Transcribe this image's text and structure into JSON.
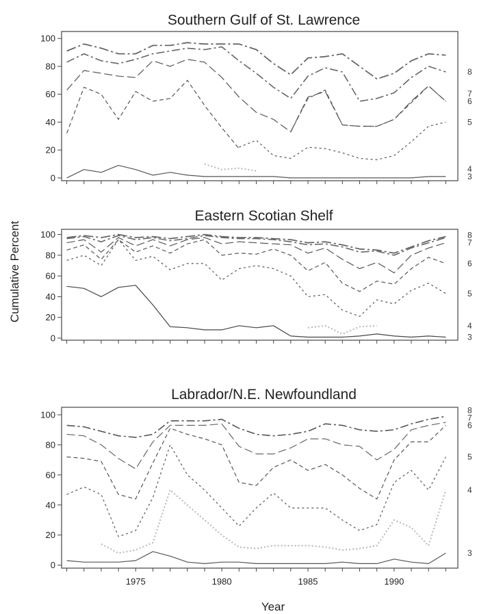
{
  "figure": {
    "ylabel": "Cumulative Percent",
    "xlabel": "Year"
  },
  "chart_data": [
    {
      "type": "line",
      "title": "Southern Gulf of St. Lawrence",
      "xlim": [
        1970.7,
        1993.7
      ],
      "ylim": [
        -2,
        105
      ],
      "x_ticks": [
        1975,
        1980,
        1985,
        1990
      ],
      "y_ticks": [
        0,
        20,
        40,
        60,
        80,
        100
      ],
      "x": [
        1971,
        1972,
        1973,
        1974,
        1975,
        1976,
        1977,
        1978,
        1979,
        1980,
        1981,
        1982,
        1983,
        1984,
        1985,
        1986,
        1987,
        1988,
        1989,
        1990,
        1991,
        1992,
        1993
      ],
      "series": [
        {
          "name": "3",
          "color": "#555555",
          "values": [
            0,
            6,
            4,
            9,
            6,
            2,
            4,
            2,
            1,
            1,
            1,
            1,
            1,
            0,
            0,
            0,
            0,
            0,
            0,
            0,
            0,
            1,
            1
          ]
        },
        {
          "name": "4",
          "color": "#bbbbbb",
          "values": [
            null,
            null,
            null,
            null,
            null,
            null,
            null,
            null,
            10,
            6,
            7,
            5,
            null,
            null,
            null,
            null,
            null,
            null,
            null,
            null,
            null,
            null,
            null
          ]
        },
        {
          "name": "5",
          "color": "#555555",
          "values": [
            null,
            null,
            null,
            null,
            null,
            null,
            null,
            null,
            null,
            null,
            22,
            27,
            16,
            14,
            22,
            21,
            18,
            14,
            13,
            16,
            26,
            37,
            40
          ]
        },
        {
          "name": "6",
          "color": "#555555",
          "values": [
            32,
            65,
            60,
            42,
            62,
            55,
            57,
            70,
            52,
            36,
            21,
            null,
            null,
            33,
            57,
            63,
            38,
            37,
            37,
            42,
            54,
            66,
            55
          ]
        },
        {
          "name": "7",
          "color": "#555555",
          "values": [
            63,
            77,
            75,
            73,
            72,
            84,
            80,
            85,
            83,
            72,
            58,
            47,
            42,
            33,
            58,
            62,
            38,
            37,
            37,
            42,
            55,
            66,
            55
          ]
        },
        {
          "name": "8",
          "color": "#666666",
          "values": [
            83,
            89,
            84,
            82,
            85,
            89,
            91,
            93,
            92,
            94,
            84,
            75,
            65,
            57,
            73,
            79,
            76,
            55,
            57,
            61,
            72,
            80,
            76
          ]
        },
        {
          "name": "",
          "color": "#666666",
          "values": [
            91,
            96,
            93,
            89,
            89,
            95,
            95,
            97,
            96,
            96,
            96,
            92,
            82,
            74,
            86,
            87,
            89,
            80,
            71,
            75,
            84,
            89,
            88
          ]
        }
      ],
      "annotations": [
        "8",
        "7",
        "6",
        "5",
        "4",
        "3"
      ]
    },
    {
      "type": "line",
      "title": "Eastern Scotian Shelf",
      "xlim": [
        1970.7,
        1993.7
      ],
      "ylim": [
        -2,
        105
      ],
      "x_ticks": [
        1975,
        1980,
        1985,
        1990
      ],
      "y_ticks": [
        0,
        20,
        40,
        60,
        80,
        100
      ],
      "x": [
        1971,
        1972,
        1973,
        1974,
        1975,
        1976,
        1977,
        1978,
        1979,
        1980,
        1981,
        1982,
        1983,
        1984,
        1985,
        1986,
        1987,
        1988,
        1989,
        1990,
        1991,
        1992,
        1993
      ],
      "series": [
        {
          "name": "3",
          "color": "#444444",
          "values": [
            50,
            48,
            40,
            49,
            51,
            32,
            11,
            10,
            8,
            8,
            12,
            10,
            12,
            2,
            1,
            1,
            1,
            2,
            4,
            2,
            1,
            2,
            1
          ]
        },
        {
          "name": "4",
          "color": "#bbbbbb",
          "values": [
            null,
            null,
            null,
            null,
            null,
            null,
            null,
            null,
            null,
            null,
            null,
            null,
            null,
            null,
            10,
            12,
            4,
            11,
            12,
            null,
            null,
            null,
            null
          ]
        },
        {
          "name": "5",
          "color": "#555555",
          "values": [
            75,
            80,
            70,
            95,
            75,
            79,
            66,
            72,
            72,
            56,
            67,
            70,
            67,
            60,
            40,
            42,
            27,
            21,
            37,
            33,
            46,
            53,
            43
          ]
        },
        {
          "name": "6",
          "color": "#555555",
          "values": [
            85,
            90,
            76,
            95,
            83,
            89,
            82,
            91,
            95,
            80,
            82,
            81,
            86,
            80,
            65,
            73,
            53,
            45,
            55,
            52,
            67,
            78,
            72
          ]
        },
        {
          "name": "7",
          "color": "#555555",
          "values": [
            92,
            95,
            83,
            97,
            89,
            95,
            89,
            95,
            97,
            91,
            93,
            92,
            91,
            90,
            82,
            87,
            76,
            67,
            73,
            63,
            80,
            87,
            92
          ]
        },
        {
          "name": "8",
          "color": "#666666",
          "values": [
            96,
            98,
            93,
            99,
            95,
            97,
            94,
            96,
            99,
            97,
            96,
            96,
            95,
            93,
            90,
            91,
            88,
            83,
            84,
            80,
            87,
            92,
            97
          ]
        },
        {
          "name": "",
          "color": "#666666",
          "values": [
            97,
            99,
            97,
            100,
            97,
            98,
            96,
            98,
            100,
            98,
            97,
            97,
            96,
            95,
            92,
            93,
            90,
            86,
            85,
            82,
            88,
            94,
            98
          ]
        }
      ],
      "annotations": [
        "8",
        "7",
        "6",
        "5",
        "4",
        "3"
      ]
    },
    {
      "type": "line",
      "title": "Labrador/N.E. Newfoundland",
      "xlim": [
        1970.7,
        1993.7
      ],
      "ylim": [
        -2,
        105
      ],
      "x_ticks": [
        1975,
        1980,
        1985,
        1990
      ],
      "y_ticks": [
        0,
        20,
        40,
        60,
        80,
        100
      ],
      "x": [
        1971,
        1972,
        1973,
        1974,
        1975,
        1976,
        1977,
        1978,
        1979,
        1980,
        1981,
        1982,
        1983,
        1984,
        1985,
        1986,
        1987,
        1988,
        1989,
        1990,
        1991,
        1992,
        1993
      ],
      "series": [
        {
          "name": "3",
          "color": "#555555",
          "values": [
            3,
            2,
            2,
            2,
            3,
            9,
            6,
            2,
            1,
            2,
            2,
            1,
            1,
            1,
            1,
            1,
            2,
            1,
            1,
            4,
            2,
            1,
            8
          ]
        },
        {
          "name": "4",
          "color": "#bbbbbb",
          "values": [
            null,
            null,
            14,
            8,
            10,
            15,
            50,
            40,
            30,
            20,
            12,
            11,
            13,
            13,
            13,
            12,
            10,
            11,
            13,
            30,
            25,
            13,
            50
          ]
        },
        {
          "name": "5",
          "color": "#555555",
          "values": [
            47,
            52,
            47,
            19,
            23,
            45,
            80,
            60,
            50,
            38,
            26,
            38,
            48,
            38,
            38,
            38,
            30,
            23,
            27,
            55,
            63,
            50,
            72
          ]
        },
        {
          "name": "6",
          "color": "#555555",
          "values": [
            72,
            71,
            69,
            47,
            44,
            68,
            91,
            87,
            84,
            80,
            55,
            53,
            65,
            70,
            63,
            67,
            60,
            51,
            44,
            70,
            82,
            82,
            93
          ]
        },
        {
          "name": "7",
          "color": "#666666",
          "values": [
            87,
            86,
            80,
            71,
            64,
            82,
            93,
            93,
            93,
            94,
            79,
            74,
            74,
            78,
            84,
            84,
            80,
            79,
            70,
            77,
            90,
            93,
            95
          ]
        },
        {
          "name": "8",
          "color": "#555555",
          "values": [
            93,
            92,
            89,
            86,
            85,
            87,
            96,
            96,
            96,
            97,
            91,
            87,
            86,
            87,
            89,
            94,
            93,
            90,
            89,
            90,
            94,
            97,
            99
          ]
        }
      ],
      "annotations": [
        "8",
        "7",
        "6",
        "5",
        "4",
        "3"
      ]
    }
  ]
}
